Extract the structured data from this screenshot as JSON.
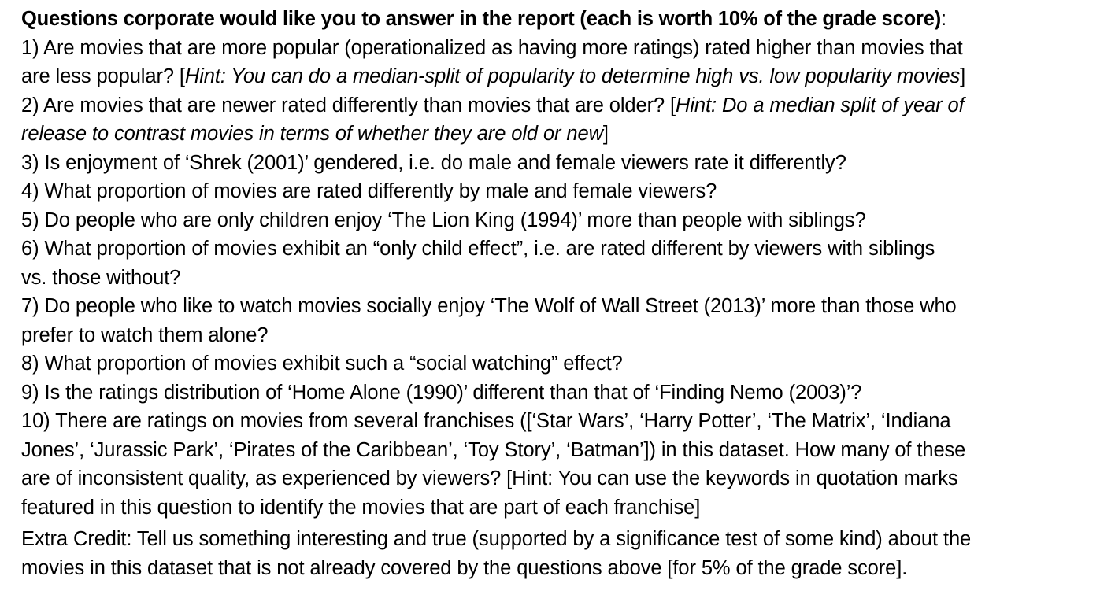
{
  "heading": {
    "bold": "Questions corporate would like you to answer in the report (each is worth 10% of the grade score)",
    "tail": ":"
  },
  "questions": [
    {
      "lines": [
        {
          "text": "1) Are movies that are more popular (operationalized as having more ratings) rated higher than movies that"
        },
        {
          "text": "are less popular? [",
          "hint": "Hint: You can do a median-split of popularity to determine high vs. low popularity movies",
          "after": "]"
        }
      ]
    },
    {
      "lines": [
        {
          "text": "2) Are movies that are newer rated differently than movies that are older? [",
          "hint": "Hint: Do a median split of year of"
        },
        {
          "text": "",
          "hint": "release to contrast movies in terms of whether they are old or new",
          "after": "]"
        }
      ]
    },
    {
      "lines": [
        {
          "text": "3) Is enjoyment of ‘Shrek (2001)’ gendered, i.e. do male and female viewers rate it differently?"
        }
      ]
    },
    {
      "lines": [
        {
          "text": "4) What proportion of movies are rated differently by male and female viewers?"
        }
      ]
    },
    {
      "lines": [
        {
          "text": "5) Do people who are only children enjoy ‘The Lion King (1994)’ more than people with siblings?"
        }
      ]
    },
    {
      "lines": [
        {
          "text": "6) What proportion of movies exhibit an “only child effect”, i.e. are rated different by viewers with siblings"
        },
        {
          "text": "vs. those without?"
        }
      ]
    },
    {
      "lines": [
        {
          "text": "7) Do people who like to watch movies socially enjoy ‘The Wolf of Wall Street (2013)’ more than those who"
        },
        {
          "text": "prefer to watch them alone?"
        }
      ]
    },
    {
      "lines": [
        {
          "text": "8) What proportion of movies exhibit such a “social watching” effect?"
        }
      ]
    },
    {
      "lines": [
        {
          "text": "9) Is the ratings distribution of ‘Home Alone (1990)’ different than that of ‘Finding Nemo (2003)’?"
        }
      ]
    },
    {
      "lines": [
        {
          "text": "10) There are ratings on movies from several franchises ([‘Star Wars’, ‘Harry Potter’, ‘The Matrix’, ‘Indiana"
        },
        {
          "text": "Jones’, ‘Jurassic Park’, ‘Pirates of the Caribbean’, ‘Toy Story’, ‘Batman’]) in this dataset. How many of these"
        },
        {
          "text": "are of inconsistent quality, as experienced by viewers? [Hint: You can use the keywords in quotation marks"
        },
        {
          "text": "featured in this question to identify the movies that are part of each franchise]"
        }
      ]
    }
  ],
  "extra_credit": {
    "lines": [
      {
        "text": "Extra Credit: Tell us something interesting and true (supported by a significance test of some kind) about the"
      },
      {
        "text": "movies in this dataset that is not already covered by the questions above [for 5% of the grade score]."
      }
    ]
  }
}
